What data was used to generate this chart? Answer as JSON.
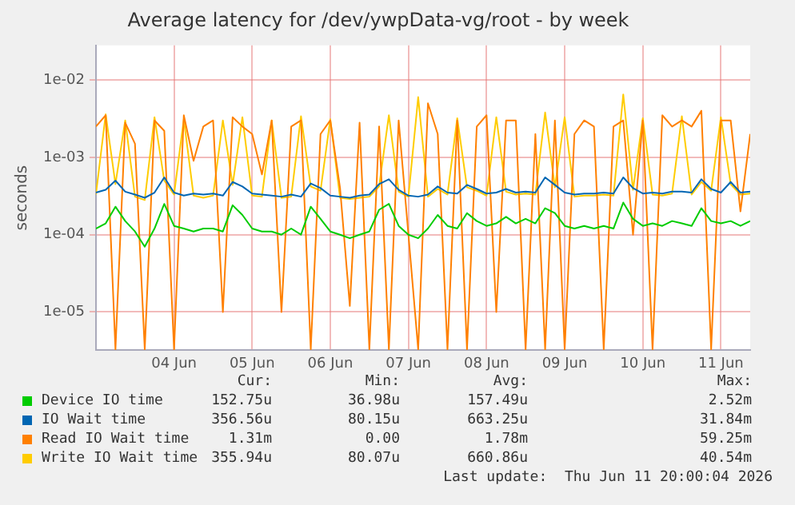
{
  "chart_data": {
    "type": "line",
    "title": "Average latency for /dev/ywpData-vg/root - by week",
    "ylabel": "seconds",
    "x": [
      "2026-06-03T12:00",
      "2026-06-03T15:00",
      "2026-06-03T18:00",
      "2026-06-03T21:00",
      "2026-06-04T00:00",
      "2026-06-04T03:00",
      "2026-06-04T06:00",
      "2026-06-04T09:00",
      "2026-06-04T12:00",
      "2026-06-04T15:00",
      "2026-06-04T18:00",
      "2026-06-04T21:00",
      "2026-06-05T00:00",
      "2026-06-05T03:00",
      "2026-06-05T06:00",
      "2026-06-05T09:00",
      "2026-06-05T12:00",
      "2026-06-05T15:00",
      "2026-06-05T18:00",
      "2026-06-05T21:00",
      "2026-06-06T00:00",
      "2026-06-06T03:00",
      "2026-06-06T06:00",
      "2026-06-06T09:00",
      "2026-06-06T12:00",
      "2026-06-06T15:00",
      "2026-06-06T18:00",
      "2026-06-06T21:00",
      "2026-06-07T00:00",
      "2026-06-07T03:00",
      "2026-06-07T06:00",
      "2026-06-07T09:00",
      "2026-06-07T12:00",
      "2026-06-07T15:00",
      "2026-06-07T18:00",
      "2026-06-07T21:00",
      "2026-06-08T00:00",
      "2026-06-08T03:00",
      "2026-06-08T06:00",
      "2026-06-08T09:00",
      "2026-06-08T12:00",
      "2026-06-08T15:00",
      "2026-06-08T18:00",
      "2026-06-08T21:00",
      "2026-06-09T00:00",
      "2026-06-09T03:00",
      "2026-06-09T06:00",
      "2026-06-09T09:00",
      "2026-06-09T12:00",
      "2026-06-09T15:00",
      "2026-06-09T18:00",
      "2026-06-09T21:00",
      "2026-06-10T00:00",
      "2026-06-10T03:00",
      "2026-06-10T06:00",
      "2026-06-10T09:00",
      "2026-06-10T12:00",
      "2026-06-10T15:00",
      "2026-06-10T18:00",
      "2026-06-10T21:00",
      "2026-06-11T00:00",
      "2026-06-11T03:00",
      "2026-06-11T06:00",
      "2026-06-11T09:00",
      "2026-06-11T12:00",
      "2026-06-11T15:00",
      "2026-06-11T18:00",
      "2026-06-11T21:00"
    ],
    "series": [
      {
        "name": "Device IO time",
        "color": "#00cc00",
        "values": [
          0.00012,
          0.00014,
          0.00023,
          0.00015,
          0.00011,
          7e-05,
          0.00012,
          0.00025,
          0.00013,
          0.00012,
          0.00011,
          0.00012,
          0.00012,
          0.00011,
          0.00024,
          0.00018,
          0.00012,
          0.00011,
          0.00011,
          0.0001,
          0.00012,
          0.0001,
          0.00023,
          0.00016,
          0.00011,
          0.0001,
          9e-05,
          0.0001,
          0.00011,
          0.00021,
          0.00025,
          0.00013,
          0.0001,
          9e-05,
          0.00012,
          0.00018,
          0.00013,
          0.00012,
          0.00019,
          0.00015,
          0.00013,
          0.00014,
          0.00017,
          0.00014,
          0.00016,
          0.00014,
          0.00022,
          0.00019,
          0.00013,
          0.00012,
          0.00013,
          0.00012,
          0.00013,
          0.00012,
          0.00026,
          0.00016,
          0.00013,
          0.00014,
          0.00013,
          0.00015,
          0.00014,
          0.00013,
          0.00022,
          0.00015,
          0.00014,
          0.00015,
          0.00013,
          0.00015
        ]
      },
      {
        "name": "IO Wait time",
        "color": "#0066b3",
        "values": [
          0.00035,
          0.00038,
          0.0005,
          0.00036,
          0.00033,
          0.0003,
          0.00035,
          0.00055,
          0.00035,
          0.00032,
          0.00034,
          0.00033,
          0.00034,
          0.00032,
          0.00048,
          0.00042,
          0.00034,
          0.00033,
          0.00032,
          0.00031,
          0.00033,
          0.00031,
          0.00046,
          0.0004,
          0.00032,
          0.00031,
          0.0003,
          0.00032,
          0.00033,
          0.00045,
          0.00052,
          0.00038,
          0.00032,
          0.00031,
          0.00033,
          0.00042,
          0.00035,
          0.00034,
          0.00044,
          0.00039,
          0.00034,
          0.00035,
          0.00039,
          0.00035,
          0.00036,
          0.00035,
          0.00055,
          0.00044,
          0.00035,
          0.00033,
          0.00034,
          0.00034,
          0.00035,
          0.00034,
          0.00055,
          0.0004,
          0.00034,
          0.00035,
          0.00034,
          0.00036,
          0.00036,
          0.00035,
          0.00052,
          0.00039,
          0.00035,
          0.00048,
          0.00035,
          0.00036
        ]
      },
      {
        "name": "Read IO Wait time",
        "color": "#ff8000",
        "values": [
          0.0025,
          0.0035,
          3.3e-06,
          0.0028,
          0.0015,
          3.3e-06,
          0.003,
          0.0022,
          3.3e-06,
          0.0035,
          0.0009,
          0.0025,
          0.003,
          1e-05,
          0.0033,
          0.0025,
          0.002,
          0.0006,
          0.003,
          1e-05,
          0.0025,
          0.003,
          3.3e-06,
          0.002,
          0.003,
          0.0004,
          1.2e-05,
          0.0028,
          3.3e-06,
          0.0025,
          3.3e-06,
          0.003,
          0.0001,
          3.3e-06,
          0.005,
          0.002,
          3.3e-06,
          0.003,
          3.3e-06,
          0.0025,
          0.0035,
          1e-05,
          0.003,
          0.003,
          3.3e-06,
          0.002,
          3.3e-06,
          0.003,
          3.3e-06,
          0.002,
          0.003,
          0.0025,
          3.3e-06,
          0.0025,
          0.003,
          0.0001,
          0.003,
          3.3e-06,
          0.0035,
          0.0025,
          0.003,
          0.0025,
          0.004,
          3.3e-06,
          0.003,
          0.003,
          0.0002,
          0.002
        ]
      },
      {
        "name": "Write IO Wait time",
        "color": "#ffcc00",
        "values": [
          0.00033,
          0.0036,
          0.00045,
          0.003,
          0.00031,
          0.00028,
          0.0033,
          0.0005,
          0.00033,
          0.0031,
          0.00032,
          0.0003,
          0.00032,
          0.003,
          0.00044,
          0.0033,
          0.00032,
          0.00031,
          0.003,
          0.0003,
          0.00031,
          0.0034,
          0.00042,
          0.00037,
          0.0031,
          0.0003,
          0.00029,
          0.0003,
          0.00031,
          0.00042,
          0.0035,
          0.00036,
          0.00031,
          0.006,
          0.00031,
          0.00039,
          0.00033,
          0.0032,
          0.00041,
          0.00037,
          0.00032,
          0.0033,
          0.00036,
          0.00033,
          0.00034,
          0.00033,
          0.0038,
          0.00041,
          0.0033,
          0.00031,
          0.00032,
          0.00032,
          0.00033,
          0.00032,
          0.0065,
          0.00038,
          0.0032,
          0.00033,
          0.00032,
          0.00034,
          0.0034,
          0.00033,
          0.00048,
          0.00037,
          0.0033,
          0.00045,
          0.00033,
          0.00034
        ]
      }
    ],
    "xlim": [
      "2026-06-03T12:00",
      "2026-06-11T21:00"
    ],
    "xticks": [
      {
        "value": "2026-06-04T12:00",
        "label": "04 Jun"
      },
      {
        "value": "2026-06-05T12:00",
        "label": "05 Jun"
      },
      {
        "value": "2026-06-06T12:00",
        "label": "06 Jun"
      },
      {
        "value": "2026-06-07T12:00",
        "label": "07 Jun"
      },
      {
        "value": "2026-06-08T12:00",
        "label": "08 Jun"
      },
      {
        "value": "2026-06-09T12:00",
        "label": "09 Jun"
      },
      {
        "value": "2026-06-10T12:00",
        "label": "10 Jun"
      },
      {
        "value": "2026-06-11T12:00",
        "label": "11 Jun"
      }
    ],
    "ylim": [
      3.2e-06,
      0.028
    ],
    "yticks": [
      {
        "value": 1e-05,
        "label": "1e-05"
      },
      {
        "value": 0.0001,
        "label": "1e-04"
      },
      {
        "value": 0.001,
        "label": "1e-03"
      },
      {
        "value": 0.01,
        "label": "1e-02"
      }
    ],
    "log": true,
    "grid": true,
    "legend": "bottom",
    "marker": "none",
    "line_style": "solid",
    "annotations": [
      "Cur:",
      "Min:",
      "Avg:",
      "Max:",
      "152.75u",
      "36.98u",
      "157.49u",
      "2.52m",
      "356.56u",
      "80.15u",
      "663.25u",
      "31.84m",
      "1.31m",
      "0.00",
      "1.78m",
      "59.25m",
      "355.94u",
      "80.07u",
      "660.86u",
      "40.54m",
      "Last update:  Thu Jun 11 20:00:04 2026"
    ]
  }
}
